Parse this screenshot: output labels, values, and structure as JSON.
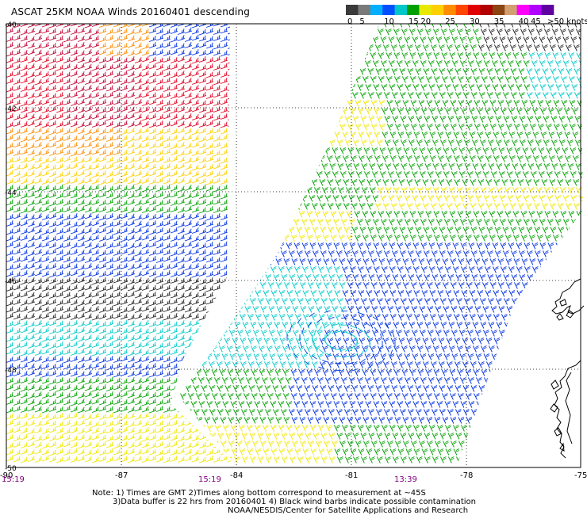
{
  "title": "ASCAT 25KM NOAA Winds 20160401 descending",
  "legend": {
    "bins": [
      {
        "label": "0",
        "color": "#3a3a3a"
      },
      {
        "label": "5",
        "color": "#7a7a7a"
      },
      {
        "label": "",
        "color": "#00b0ff"
      },
      {
        "label": "10",
        "color": "#0050ff"
      },
      {
        "label": "",
        "color": "#00c8c8"
      },
      {
        "label": "15",
        "color": "#00a000"
      },
      {
        "label": "20",
        "color": "#e8e800"
      },
      {
        "label": "",
        "color": "#ffd000"
      },
      {
        "label": "25",
        "color": "#ff8c00"
      },
      {
        "label": "",
        "color": "#ff4500"
      },
      {
        "label": "30",
        "color": "#e00000"
      },
      {
        "label": "",
        "color": "#b00000"
      },
      {
        "label": "35",
        "color": "#8b4513"
      },
      {
        "label": "",
        "color": "#d2a070"
      },
      {
        "label": "40",
        "color": "#ff00ff"
      },
      {
        "label": "45",
        "color": "#b000ff"
      },
      {
        "label": "",
        "color": "#6000a0"
      }
    ],
    "end_label": ">50 knots"
  },
  "axes": {
    "lat_labels": [
      "-40",
      "-42",
      "-44",
      "-46",
      "-48",
      "-50"
    ],
    "lon_labels": [
      "-90",
      "-87",
      "-84",
      "-81",
      "-78",
      "-75"
    ]
  },
  "time_labels": {
    "left": "15:19",
    "middle": "15:19",
    "right": "13:39"
  },
  "notes": {
    "line1": "Note: 1) Times are GMT 2)Times along bottom correspond to measurement at ~45S",
    "line2": "3)Data buffer is 22 hrs from 20160401 4) Black wind barbs indicate possible contamination",
    "line3": "NOAA/NESDIS/Center for Satellite Applications and Research"
  },
  "colors": {
    "grid": "#000000",
    "time_label": "#800080",
    "coast": "#000000"
  }
}
